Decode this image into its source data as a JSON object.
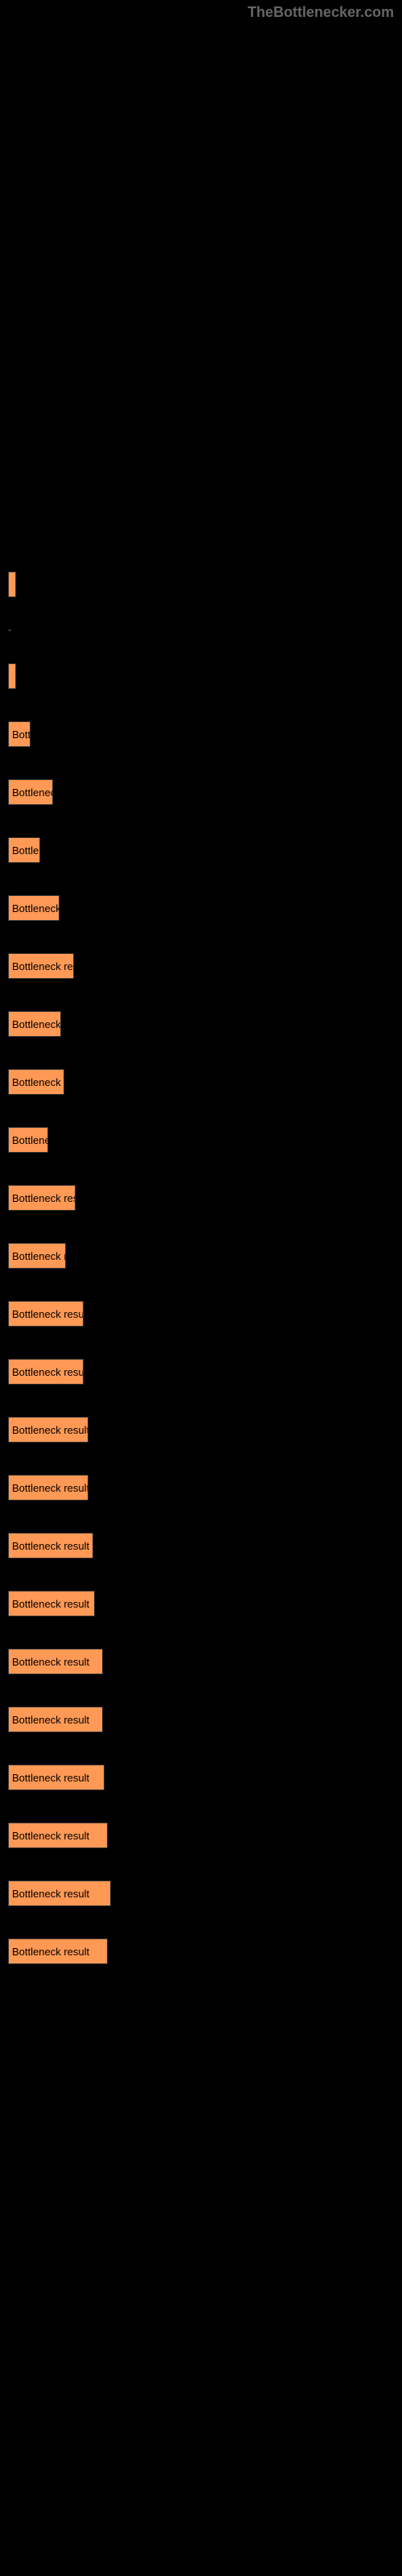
{
  "watermark": "TheBottlenecker.com",
  "chart": {
    "type": "bar",
    "background_color": "#000000",
    "bar_color": "#ff9955",
    "text_color": "#000000",
    "label_color": "#999999",
    "bars": [
      {
        "label": "",
        "text": "",
        "width": 10
      },
      {
        "label": "",
        "text": "",
        "width": 4,
        "separator": true
      },
      {
        "label": "",
        "text": "",
        "width": 10
      },
      {
        "label": "",
        "text": "Bottle",
        "width": 28
      },
      {
        "label": "",
        "text": "Bottleneck",
        "width": 56
      },
      {
        "label": "",
        "text": "Bottlen",
        "width": 40
      },
      {
        "label": "",
        "text": "Bottleneck r",
        "width": 64
      },
      {
        "label": "",
        "text": "Bottleneck resu",
        "width": 82
      },
      {
        "label": "",
        "text": "Bottleneck r",
        "width": 66
      },
      {
        "label": "",
        "text": "Bottleneck re",
        "width": 70
      },
      {
        "label": "",
        "text": "Bottlenec",
        "width": 50
      },
      {
        "label": "",
        "text": "Bottleneck resu",
        "width": 84
      },
      {
        "label": "",
        "text": "Bottleneck re",
        "width": 72
      },
      {
        "label": "",
        "text": "Bottleneck result",
        "width": 94
      },
      {
        "label": "",
        "text": "Bottleneck result",
        "width": 94
      },
      {
        "label": "",
        "text": "Bottleneck result",
        "width": 100
      },
      {
        "label": "",
        "text": "Bottleneck result",
        "width": 100
      },
      {
        "label": "",
        "text": "Bottleneck result",
        "width": 106
      },
      {
        "label": "",
        "text": "Bottleneck result",
        "width": 108
      },
      {
        "label": "",
        "text": "Bottleneck result",
        "width": 118
      },
      {
        "label": "",
        "text": "Bottleneck result",
        "width": 118
      },
      {
        "label": "",
        "text": "Bottleneck result",
        "width": 120
      },
      {
        "label": "",
        "text": "Bottleneck result",
        "width": 124
      },
      {
        "label": "",
        "text": "Bottleneck result",
        "width": 128
      },
      {
        "label": "",
        "text": "Bottleneck result",
        "width": 124
      }
    ]
  }
}
